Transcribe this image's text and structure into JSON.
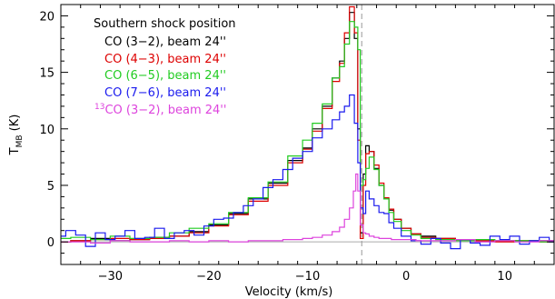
{
  "chart_data": {
    "type": "line",
    "xlabel": "Velocity (km/s)",
    "ylabel_main": "T",
    "ylabel_sub": "MB",
    "ylabel_unit": " (K)",
    "xlim": [
      -35,
      15
    ],
    "ylim": [
      -2,
      21
    ],
    "xticks_major": [
      -30,
      -20,
      -10,
      0,
      10
    ],
    "xticks_minor_step": 2,
    "yticks_major": [
      0,
      5,
      10,
      15,
      20
    ],
    "yticks_minor_step": 1,
    "zero_line": 0,
    "marker_line_x": -4.5,
    "legend": {
      "title": "Southern shock position",
      "placement": "top-left",
      "entries": [
        {
          "text": "CO (3−2), beam 24''",
          "color": "#000000"
        },
        {
          "text": "CO (4−3), beam 24''",
          "color": "#dd0000"
        },
        {
          "text": "CO (6−5), beam 24''",
          "color": "#22cc22"
        },
        {
          "text": "CO (7−6), beam 24''",
          "color": "#1a1aee"
        },
        {
          "text_prefix": "13",
          "text": "CO (3−2), beam 24''",
          "color": "#dd44dd"
        }
      ]
    },
    "series": [
      {
        "name": "CO (3−2), beam 24''",
        "color": "#000000",
        "x": [
          -35,
          -33,
          -31,
          -29,
          -27,
          -25,
          -23,
          -21,
          -19,
          -17,
          -15,
          -13,
          -11,
          -10,
          -9,
          -8,
          -7,
          -6.5,
          -6,
          -5.5,
          -5,
          -4.8,
          -4.5,
          -4.2,
          -4,
          -3.5,
          -3,
          -2.5,
          -2,
          -1.5,
          -1,
          0,
          1,
          2,
          4,
          6,
          8,
          10,
          12,
          15
        ],
        "y": [
          0,
          0.1,
          0.3,
          0.1,
          0.2,
          0.4,
          0.5,
          0.9,
          1.5,
          2.5,
          3.8,
          5.2,
          7.2,
          8.3,
          10,
          12,
          14.5,
          16,
          18,
          20.3,
          18,
          10,
          0.8,
          6,
          8.5,
          8,
          6.5,
          5,
          3.8,
          2.8,
          2,
          1.2,
          0.7,
          0.5,
          0.3,
          0.2,
          0.1,
          0.1,
          0.1,
          0.1
        ]
      },
      {
        "name": "CO (4−3), beam 24''",
        "color": "#dd0000",
        "x": [
          -35,
          -33,
          -31,
          -29,
          -27,
          -25,
          -23,
          -21,
          -19,
          -17,
          -15,
          -13,
          -11,
          -10,
          -9,
          -8,
          -7,
          -6.5,
          -6,
          -5.5,
          -5,
          -4.8,
          -4.5,
          -4.2,
          -4,
          -3.5,
          -3,
          -2.5,
          -2,
          -1.5,
          -1,
          0,
          1,
          2,
          4,
          6,
          8,
          10,
          12,
          15
        ],
        "y": [
          0,
          0.1,
          0.2,
          0.3,
          0.2,
          0.3,
          0.5,
          0.8,
          1.4,
          2.4,
          3.6,
          5,
          7,
          8.2,
          9.8,
          11.8,
          14.2,
          15.8,
          18.5,
          20.8,
          18.5,
          9,
          0.3,
          5,
          7.8,
          8,
          6.8,
          5.2,
          3.9,
          2.9,
          2,
          1.2,
          0.7,
          0.4,
          0.3,
          0.2,
          0.1,
          0,
          0.1,
          0
        ]
      },
      {
        "name": "CO (6−5), beam 24''",
        "color": "#22cc22",
        "x": [
          -35,
          -33,
          -31,
          -29,
          -27,
          -25,
          -23,
          -21,
          -19,
          -17,
          -15,
          -13,
          -11,
          -10,
          -9,
          -8,
          -7,
          -6.5,
          -6,
          -5.5,
          -5,
          -4.8,
          -4.5,
          -4.2,
          -4,
          -3.5,
          -3,
          -2.5,
          -2,
          -1.5,
          -1,
          0,
          1,
          2,
          4,
          6,
          8,
          10,
          12,
          15
        ],
        "y": [
          0.3,
          0.4,
          0.2,
          0.5,
          0.3,
          0.4,
          0.8,
          1.2,
          1.6,
          2.6,
          3.9,
          5.3,
          7.6,
          9,
          10.5,
          12.2,
          14.5,
          15.5,
          17.5,
          19.5,
          19,
          17,
          5,
          5.5,
          6.5,
          7.5,
          6.4,
          5,
          3.8,
          2.6,
          1.8,
          1,
          0.6,
          0.3,
          0.2,
          0.1,
          0.2,
          0.1,
          0.1,
          0
        ]
      },
      {
        "name": "CO (7−6), beam 24''",
        "color": "#1a1aee",
        "x": [
          -35,
          -34,
          -33,
          -32,
          -31,
          -30,
          -29,
          -28,
          -27,
          -26,
          -25,
          -24,
          -23,
          -22,
          -21,
          -20,
          -19,
          -18,
          -17,
          -16,
          -15,
          -14,
          -13,
          -12,
          -11,
          -10,
          -9,
          -8,
          -7,
          -6.5,
          -6,
          -5.5,
          -5,
          -4.8,
          -4.5,
          -4.2,
          -4,
          -3.5,
          -3,
          -2.5,
          -2,
          -1.5,
          -1,
          0,
          1,
          2,
          3,
          4,
          5,
          6,
          7,
          8,
          9,
          10,
          11,
          12,
          13,
          14,
          15
        ],
        "y": [
          0.5,
          1,
          0.6,
          -0.4,
          0.8,
          0.2,
          0.5,
          1,
          0.3,
          0.4,
          1.2,
          0.3,
          0.8,
          1,
          0.6,
          1.4,
          2,
          2.1,
          2.6,
          3.2,
          3.8,
          4.8,
          5.5,
          6.4,
          7.4,
          8,
          9.2,
          10,
          10.8,
          11.5,
          12,
          13,
          10.5,
          7,
          3,
          2.5,
          4.5,
          3.8,
          3.2,
          2.6,
          2.5,
          1.7,
          1.2,
          0.5,
          0.1,
          -0.2,
          0.3,
          -0.1,
          -0.6,
          0.2,
          -0.1,
          -0.3,
          0.5,
          0.2,
          0.5,
          -0.2,
          0.1,
          0.4,
          0
        ]
      },
      {
        "name": "13CO (3−2), beam 24''",
        "color": "#dd44dd",
        "x": [
          -35,
          -33,
          -31,
          -29,
          -27,
          -25,
          -23,
          -21,
          -19,
          -17,
          -15,
          -13,
          -12,
          -11,
          -10,
          -9,
          -8,
          -7,
          -6.5,
          -6,
          -5.5,
          -5.2,
          -5,
          -4.8,
          -4.5,
          -4.2,
          -4,
          -3.5,
          -3,
          -2.5,
          -2,
          -1,
          0,
          2,
          4,
          6,
          8,
          10,
          12,
          15
        ],
        "y": [
          0,
          0,
          -0.1,
          0.1,
          0,
          0,
          0.1,
          0,
          0.1,
          0,
          0.1,
          0.1,
          0.2,
          0.2,
          0.3,
          0.4,
          0.6,
          0.9,
          1.3,
          2,
          3,
          4.5,
          6,
          4.5,
          1.5,
          0.8,
          0.7,
          0.5,
          0.4,
          0.3,
          0.3,
          0.2,
          0.2,
          0.1,
          0.1,
          0.2,
          0,
          0.1,
          0,
          0.1
        ]
      }
    ]
  }
}
